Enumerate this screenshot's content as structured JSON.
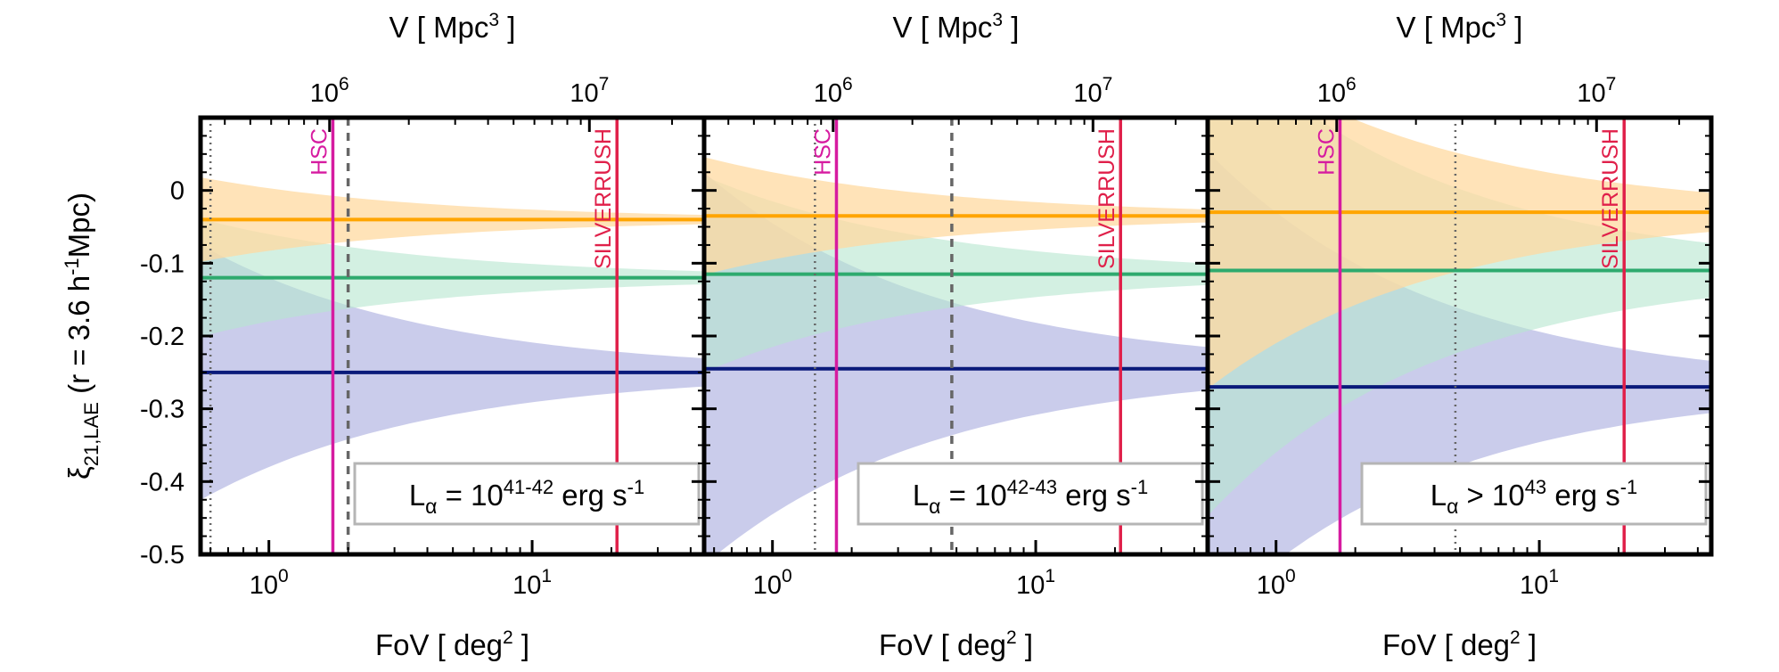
{
  "chart_data": {
    "type": "line",
    "colors": {
      "orange": "#ffa500",
      "green": "#2eaa6e",
      "navy": "#0a1a7a",
      "orange_band": "#ffd9a0",
      "green_band": "#b6e6cf",
      "blue_band": "#aeb0e0",
      "hsc": "#d61ba0",
      "silverrush": "#e0204a",
      "ref_line": "#666666"
    },
    "ylabel": "ξ21,LAE (r = 3.6 h-1Mpc)",
    "ylim": [
      -0.5,
      0.1
    ],
    "yticks": [
      {
        "v": 0,
        "label": "0"
      },
      {
        "v": -0.1,
        "label": "-0.1"
      },
      {
        "v": -0.2,
        "label": "-0.2"
      },
      {
        "v": -0.3,
        "label": "-0.3"
      },
      {
        "v": -0.4,
        "label": "-0.4"
      },
      {
        "v": -0.5,
        "label": "-0.5"
      }
    ],
    "xscale": "log",
    "xlim": [
      0.55,
      45
    ],
    "xticks": [
      {
        "v": 1,
        "base": "10",
        "exp": "0"
      },
      {
        "v": 10,
        "base": "10",
        "exp": "1"
      }
    ],
    "xlabel": {
      "text": "FoV [ deg",
      "sup": "2",
      "end": " ]"
    },
    "top_axis": {
      "label": {
        "text": "V [ Mpc",
        "sup": "3",
        "end": " ]"
      },
      "ticks": [
        {
          "base": "10",
          "exp": "6"
        },
        {
          "base": "10",
          "exp": "7"
        }
      ]
    },
    "hsc_label": "HSC",
    "silverrush_label": "SILVERRUSH",
    "vlines": {
      "hsc": 1.75,
      "silverrush": 21
    },
    "panels": [
      {
        "legend": {
          "pre": "L",
          "sub": "α",
          "op": " = 10",
          "exp": "41-42",
          "unit": " erg s",
          "unit_exp": "-1"
        },
        "dotted_x": 0.6,
        "dashed_x": 2.0,
        "series": [
          {
            "color": "orange",
            "mean": -0.04,
            "sd_at_1": 0.043,
            "sd_power": 0.5
          },
          {
            "color": "green",
            "mean": -0.12,
            "sd_at_1": 0.06,
            "sd_power": 0.5
          },
          {
            "color": "navy",
            "mean": -0.25,
            "sd_at_1": 0.13,
            "sd_power": 0.5
          }
        ]
      },
      {
        "legend": {
          "pre": "L",
          "sub": "α",
          "op": " = 10",
          "exp": "42-43",
          "unit": " erg s",
          "unit_exp": "-1"
        },
        "dotted_x": 1.45,
        "dashed_x": 4.8,
        "series": [
          {
            "color": "orange",
            "mean": -0.035,
            "sd_at_1": 0.06,
            "sd_power": 0.5
          },
          {
            "color": "green",
            "mean": -0.115,
            "sd_at_1": 0.1,
            "sd_power": 0.5
          },
          {
            "color": "navy",
            "mean": -0.245,
            "sd_at_1": 0.2,
            "sd_power": 0.5
          }
        ]
      },
      {
        "legend": {
          "pre": "L",
          "sub": "α",
          "op": " > 10",
          "exp": "43",
          "unit": " erg s",
          "unit_exp": "-1"
        },
        "dotted_x": 4.8,
        "dashed_x": null,
        "series": [
          {
            "color": "orange",
            "mean": -0.03,
            "sd_at_1": 0.18,
            "sd_power": 0.5
          },
          {
            "color": "green",
            "mean": -0.11,
            "sd_at_1": 0.25,
            "sd_power": 0.5
          },
          {
            "color": "navy",
            "mean": -0.27,
            "sd_at_1": 0.24,
            "sd_power": 0.5
          }
        ]
      }
    ]
  }
}
